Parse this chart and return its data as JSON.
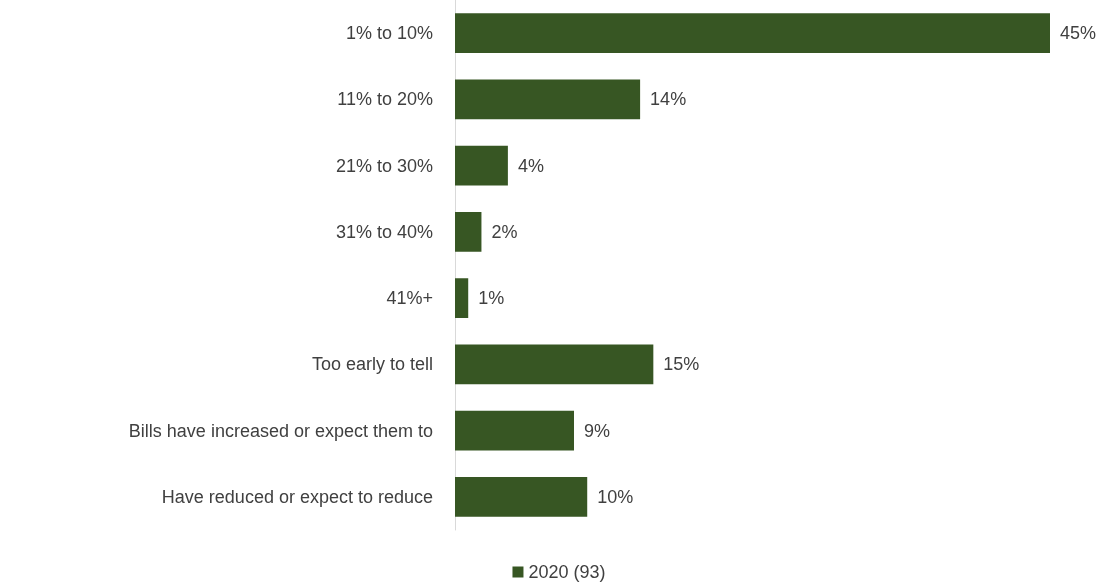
{
  "chart_data": {
    "type": "bar",
    "orientation": "horizontal",
    "categories": [
      "1% to 10%",
      "11% to 20%",
      "21% to 30%",
      "31% to 40%",
      "41%+",
      "Too early to tell",
      "Bills have increased or expect them to",
      "Have reduced or expect to reduce"
    ],
    "series": [
      {
        "name": "2020 (93)",
        "color": "#375623",
        "values": [
          45,
          14,
          4,
          2,
          1,
          15,
          9,
          10
        ],
        "value_labels": [
          "45%",
          "14%",
          "4%",
          "2%",
          "1%",
          "15%",
          "9%",
          "10%"
        ]
      }
    ],
    "legend": "bottom"
  }
}
